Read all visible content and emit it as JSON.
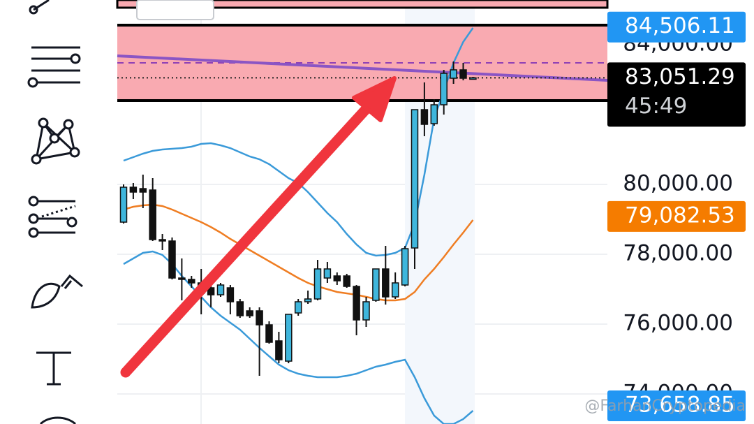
{
  "chart_data": {
    "type": "candlestick",
    "ylim": [
      73140,
      85280
    ],
    "yticks": [
      {
        "value": 74000,
        "label": "74,000.00"
      },
      {
        "value": 76000,
        "label": "76,000.00"
      },
      {
        "value": 78000,
        "label": "78,000.00"
      },
      {
        "value": 80000,
        "label": "80,000.00"
      },
      {
        "value": 84000,
        "label": "84,000.00"
      }
    ],
    "grid": true,
    "colors": {
      "up": "#3fb6dc",
      "down": "#111111"
    },
    "candles": {
      "open": [
        78920,
        79920,
        79880,
        79840,
        78420,
        78380,
        77320,
        77280,
        77180,
        77040,
        76840,
        77040,
        76640,
        76380,
        76380,
        75980,
        75520,
        74940,
        76320,
        76640,
        76720,
        77320,
        77380,
        77380,
        77080,
        76120,
        76680,
        77580,
        76780,
        77120,
        78180,
        82140,
        81740,
        82280,
        83040,
        83280,
        83040
      ],
      "high": [
        80000,
        80040,
        80280,
        80180,
        78580,
        78480,
        77880,
        77380,
        77580,
        77280,
        77180,
        77120,
        76720,
        76480,
        76480,
        76080,
        75780,
        76280,
        76720,
        76960,
        77840,
        77780,
        77480,
        77440,
        77120,
        76780,
        77580,
        78240,
        77480,
        78240,
        82140,
        82920,
        82440,
        83280,
        83520,
        83480,
        83080
      ],
      "low": [
        78880,
        79580,
        79320,
        78380,
        78120,
        77280,
        76680,
        77040,
        76280,
        76480,
        76780,
        76280,
        76180,
        76180,
        74520,
        75440,
        74880,
        74880,
        76240,
        76580,
        76680,
        77180,
        77120,
        77040,
        75680,
        75920,
        76640,
        76560,
        76720,
        77080,
        77580,
        81380,
        81680,
        82000,
        82880,
        82980,
        83000
      ],
      "close": [
        79920,
        79780,
        79780,
        78420,
        78380,
        77320,
        77280,
        77180,
        76880,
        76840,
        77120,
        76640,
        76240,
        76240,
        75980,
        75480,
        74980,
        76280,
        76640,
        76720,
        77580,
        77580,
        77240,
        77080,
        76120,
        76640,
        77580,
        76780,
        77180,
        78160,
        82140,
        81720,
        82280,
        83180,
        83280,
        83040,
        83051.29
      ]
    },
    "indicators": [
      {
        "color": "#3a9ad9",
        "values": [
          80680,
          80780,
          80880,
          80960,
          81000,
          81020,
          81040,
          81080,
          81160,
          81180,
          81120,
          81040,
          80920,
          80800,
          80720,
          80580,
          80380,
          80180,
          80040,
          79780,
          79480,
          79180,
          78920,
          78580,
          78280,
          78040,
          77960,
          77980,
          78040,
          78180,
          78880,
          80280,
          81880,
          82680,
          83480,
          84080,
          84480
        ]
      },
      {
        "color": "#ef7d22",
        "values": [
          79280,
          79360,
          79400,
          79420,
          79380,
          79280,
          79160,
          79040,
          78920,
          78780,
          78620,
          78440,
          78280,
          78120,
          77960,
          77800,
          77640,
          77480,
          77320,
          77180,
          77080,
          77000,
          76920,
          76880,
          76840,
          76780,
          76720,
          76680,
          76680,
          76720,
          76920,
          77280,
          77580,
          77920,
          78280,
          78620,
          78980
        ]
      },
      {
        "color": "#3a9ad9",
        "values": [
          77720,
          77880,
          78040,
          78080,
          77980,
          77720,
          77380,
          77080,
          76780,
          76480,
          76240,
          76040,
          75840,
          75580,
          75320,
          75080,
          74840,
          74680,
          74580,
          74520,
          74480,
          74480,
          74480,
          74520,
          74580,
          74680,
          74780,
          74840,
          74920,
          74980,
          74480,
          73880,
          73380,
          73140,
          73140,
          73280,
          73520
        ]
      }
    ],
    "price_tags": [
      {
        "value": 84506.11,
        "label": "84,506.11",
        "color": "#2196f3"
      },
      {
        "value": 83051.29,
        "label": "83,051.29",
        "color": "#000000",
        "timer": "45:49"
      },
      {
        "value": 79082.53,
        "label": "79,082.53",
        "color": "#f57c00"
      },
      {
        "value": 73658.85,
        "label": "73,658.85",
        "color": "#2196f3"
      }
    ],
    "watermark": "@FarhanCryptopedia"
  }
}
